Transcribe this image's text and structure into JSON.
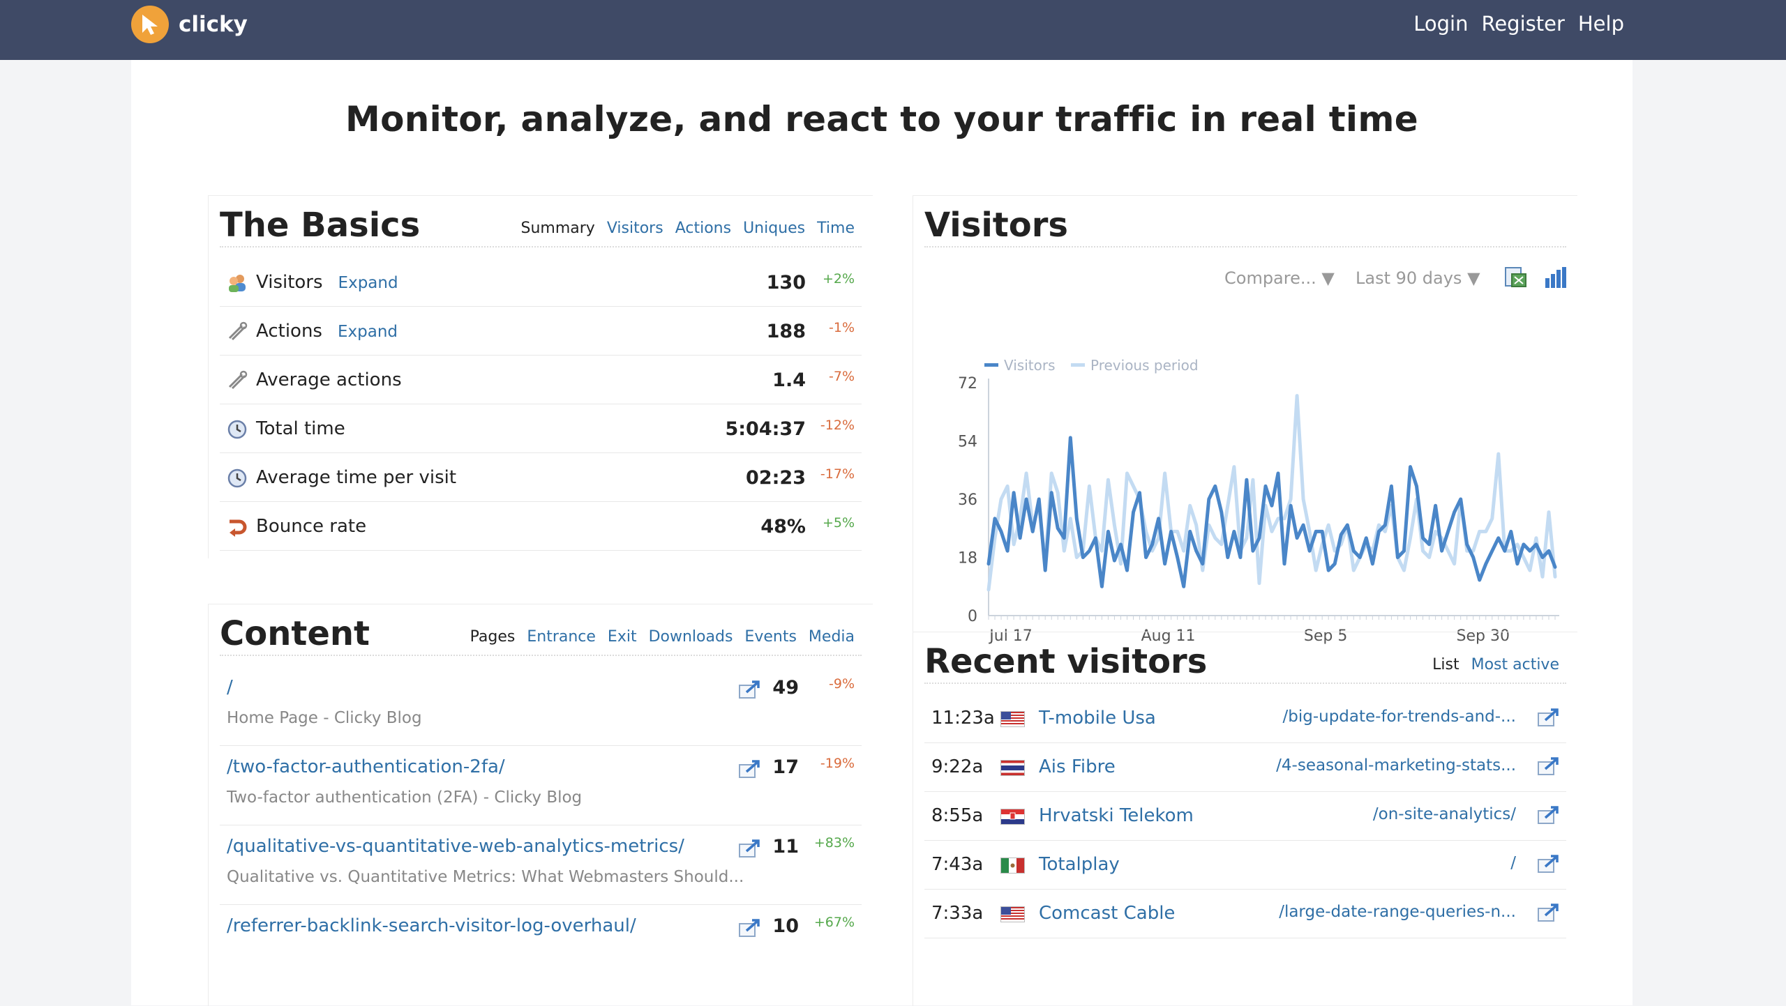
{
  "header": {
    "brand": "clicky",
    "links": [
      "Login",
      "Register",
      "Help"
    ]
  },
  "hero": "Monitor, analyze, and react to your traffic in real time",
  "basics": {
    "title": "The Basics",
    "tabs": [
      "Summary",
      "Visitors",
      "Actions",
      "Uniques",
      "Time"
    ],
    "rows": [
      {
        "icon": "visitors-icon",
        "label": "Visitors",
        "expand": "Expand",
        "value": "130",
        "change": "+2%"
      },
      {
        "icon": "actions-icon",
        "label": "Actions",
        "expand": "Expand",
        "value": "188",
        "change": "-1%"
      },
      {
        "icon": "actions-icon",
        "label": "Average actions",
        "expand": "",
        "value": "1.4",
        "change": "-7%"
      },
      {
        "icon": "clock-icon",
        "label": "Total time",
        "expand": "",
        "value": "5:04:37",
        "change": "-12%"
      },
      {
        "icon": "clock-icon",
        "label": "Average time per visit",
        "expand": "",
        "value": "02:23",
        "change": "-17%"
      },
      {
        "icon": "bounce-icon",
        "label": "Bounce rate",
        "expand": "",
        "value": "48%",
        "change": "+5%"
      }
    ]
  },
  "visitors_panel": {
    "title": "Visitors",
    "compare": "Compare... ▼",
    "range": "Last 90 days ▼",
    "colors": {
      "current": "#4a86c8",
      "previous": "#c3dbf2"
    }
  },
  "chart_data": {
    "type": "line",
    "x_ticks": [
      "Jul 17",
      "Aug 11",
      "Sep 5",
      "Sep 30"
    ],
    "x_tick_index": [
      2,
      27,
      52,
      77
    ],
    "ylim": [
      0,
      72
    ],
    "y_ticks": [
      "72",
      "54",
      "36",
      "18",
      "0"
    ],
    "grid": false,
    "legend_position": "top-left",
    "series": [
      {
        "name": "Visitors",
        "values": [
          16,
          30,
          26,
          20,
          38,
          24,
          36,
          26,
          36,
          14,
          38,
          27,
          24,
          55,
          30,
          18,
          20,
          24,
          9,
          26,
          17,
          22,
          14,
          32,
          38,
          18,
          22,
          30,
          16,
          26,
          18,
          9,
          26,
          20,
          16,
          36,
          40,
          32,
          18,
          26,
          18,
          42,
          20,
          24,
          40,
          34,
          44,
          16,
          34,
          24,
          28,
          20,
          26,
          26,
          14,
          16,
          25,
          28,
          20,
          18,
          24,
          16,
          26,
          28,
          40,
          18,
          20,
          46,
          40,
          24,
          22,
          34,
          20,
          26,
          32,
          36,
          22,
          18,
          11,
          16,
          20,
          24,
          20,
          26,
          16,
          22,
          20,
          22,
          18,
          20,
          15
        ]
      },
      {
        "name": "Previous period",
        "values": [
          8,
          24,
          36,
          40,
          22,
          30,
          44,
          28,
          34,
          16,
          44,
          38,
          20,
          30,
          18,
          20,
          40,
          24,
          20,
          42,
          28,
          16,
          44,
          40,
          36,
          26,
          20,
          24,
          44,
          26,
          26,
          20,
          34,
          28,
          14,
          28,
          24,
          22,
          34,
          46,
          20,
          24,
          42,
          10,
          34,
          26,
          30,
          30,
          36,
          68,
          36,
          26,
          14,
          22,
          28,
          20,
          22,
          28,
          14,
          18,
          22,
          20,
          28,
          26,
          34,
          18,
          14,
          24,
          36,
          20,
          18,
          26,
          24,
          20,
          16,
          36,
          20,
          20,
          26,
          26,
          30,
          50,
          20,
          20,
          22,
          18,
          14,
          24,
          12,
          32,
          12
        ]
      }
    ]
  },
  "content": {
    "title": "Content",
    "tabs": [
      "Pages",
      "Entrance",
      "Exit",
      "Downloads",
      "Events",
      "Media"
    ],
    "rows": [
      {
        "path": "/",
        "title": "Home Page - Clicky Blog",
        "value": "49",
        "change": "-9%"
      },
      {
        "path": "/two-factor-authentication-2fa/",
        "title": "Two-factor authentication (2FA) - Clicky Blog",
        "value": "17",
        "change": "-19%"
      },
      {
        "path": "/qualitative-vs-quantitative-web-analytics-metrics/",
        "title": "Qualitative vs. Quantitative Metrics: What Webmasters Should...",
        "value": "11",
        "change": "+83%"
      },
      {
        "path": "/referrer-backlink-search-visitor-log-overhaul/",
        "title": "",
        "value": "10",
        "change": "+67%"
      }
    ]
  },
  "recent": {
    "title": "Recent visitors",
    "tabs": [
      "List",
      "Most active"
    ],
    "rows": [
      {
        "time": "11:23a",
        "flag": "us",
        "isp": "T-mobile Usa",
        "page": "/big-update-for-trends-and-..."
      },
      {
        "time": "9:22a",
        "flag": "th",
        "isp": "Ais Fibre",
        "page": "/4-seasonal-marketing-stats..."
      },
      {
        "time": "8:55a",
        "flag": "hr",
        "isp": "Hrvatski Telekom",
        "page": "/on-site-analytics/"
      },
      {
        "time": "7:43a",
        "flag": "mx",
        "isp": "Totalplay",
        "page": "/"
      },
      {
        "time": "7:33a",
        "flag": "us",
        "isp": "Comcast Cable",
        "page": "/large-date-range-queries-n..."
      }
    ]
  }
}
